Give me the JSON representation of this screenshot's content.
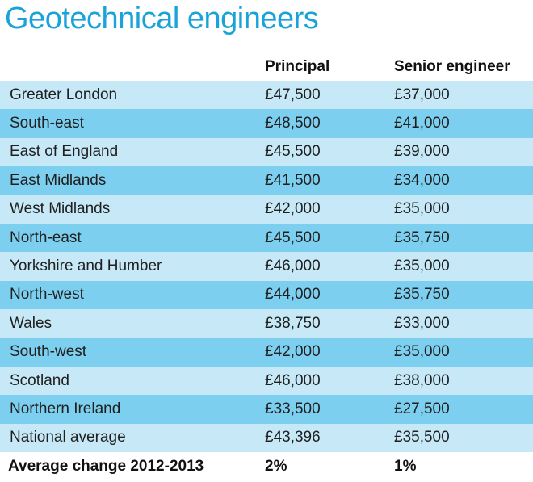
{
  "title": "Geotechnical engineers",
  "headers": [
    "",
    "Principal",
    "Senior engineer"
  ],
  "rows": [
    {
      "region": "Greater London",
      "principal": "£47,500",
      "senior": "£37,000"
    },
    {
      "region": "South-east",
      "principal": "£48,500",
      "senior": "£41,000"
    },
    {
      "region": "East of England",
      "principal": "£45,500",
      "senior": "£39,000"
    },
    {
      "region": "East Midlands",
      "principal": "£41,500",
      "senior": "£34,000"
    },
    {
      "region": "West Midlands",
      "principal": "£42,000",
      "senior": "£35,000"
    },
    {
      "region": "North-east",
      "principal": "£45,500",
      "senior": "£35,750"
    },
    {
      "region": "Yorkshire and Humber",
      "principal": "£46,000",
      "senior": "£35,000"
    },
    {
      "region": "North-west",
      "principal": "£44,000",
      "senior": "£35,750"
    },
    {
      "region": "Wales",
      "principal": "£38,750",
      "senior": "£33,000"
    },
    {
      "region": "South-west",
      "principal": "£42,000",
      "senior": "£35,000"
    },
    {
      "region": "Scotland",
      "principal": "£46,000",
      "senior": "£38,000"
    },
    {
      "region": "Northern Ireland",
      "principal": "£33,500",
      "senior": "£27,500"
    },
    {
      "region": "National average",
      "principal": "£43,396",
      "senior": "£35,500"
    }
  ],
  "summary": {
    "label": "Average change 2012-2013",
    "principal": "2%",
    "senior": "1%"
  },
  "colors": {
    "title": "#1aa3d9",
    "row_light": "#c7e9f7",
    "row_dark": "#7dcff0"
  }
}
